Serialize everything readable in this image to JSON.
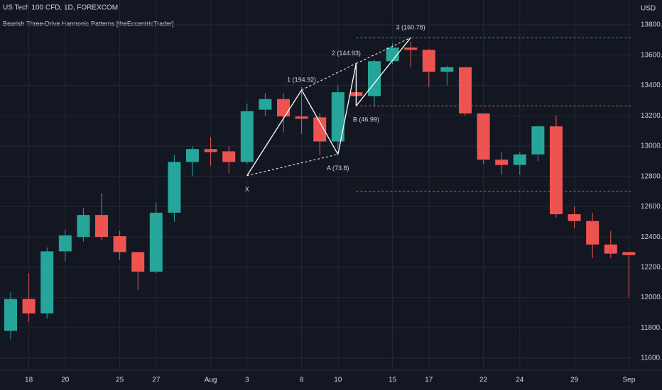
{
  "chart_data": {
    "type": "candlestick",
    "title": "US Tech 100 CFD, 1D, FOREXCOM",
    "subtitle": "Bearish Three-Drive Harmonic Patterns [theEccentricTrader]",
    "y_unit": "USD",
    "categories": [
      null,
      "18",
      null,
      "20",
      null,
      null,
      "25",
      null,
      "27",
      null,
      null,
      "Aug",
      null,
      "3",
      null,
      null,
      "8",
      null,
      "10",
      null,
      null,
      "15",
      null,
      "17",
      null,
      null,
      "22",
      null,
      "24",
      null,
      null,
      "29",
      null,
      null,
      "Sep"
    ],
    "open": [
      11780,
      11990,
      11895,
      12305,
      12400,
      12545,
      12405,
      12300,
      12170,
      12560,
      12895,
      12980,
      12965,
      12895,
      13240,
      13310,
      13195,
      13190,
      13030,
      13355,
      13330,
      13560,
      13650,
      13635,
      13490,
      13520,
      13215,
      12910,
      12875,
      12945,
      13130,
      12550,
      12505,
      12350,
      12300
    ],
    "high": [
      12035,
      12160,
      12330,
      12450,
      12590,
      12690,
      12440,
      12300,
      12630,
      12940,
      13000,
      13060,
      13000,
      13280,
      13350,
      13350,
      13390,
      13220,
      13400,
      13550,
      13570,
      13680,
      13690,
      13640,
      13530,
      13520,
      13215,
      12960,
      12960,
      13135,
      13200,
      12600,
      12560,
      12440,
      12300
    ],
    "low": [
      11725,
      11840,
      11860,
      12240,
      12370,
      12380,
      12250,
      12050,
      12160,
      12500,
      12800,
      12870,
      12820,
      12880,
      13200,
      13090,
      13080,
      12940,
      12980,
      13270,
      13260,
      13540,
      13520,
      13390,
      13400,
      13200,
      12880,
      12810,
      12810,
      12900,
      12530,
      12460,
      12260,
      12260,
      12000
    ],
    "close": [
      11990,
      11895,
      12305,
      12410,
      12545,
      12400,
      12300,
      12170,
      12560,
      12895,
      12980,
      12960,
      12895,
      13230,
      13310,
      13195,
      13180,
      13030,
      13355,
      13330,
      13560,
      13650,
      13635,
      13490,
      13520,
      13215,
      12910,
      12875,
      12945,
      13130,
      12550,
      12505,
      12350,
      12290,
      12280
    ],
    "up_color": "#26a69a",
    "down_color": "#ef5350",
    "ylim": [
      11530,
      13964
    ],
    "yticks": [
      {
        "value": 11600,
        "label": "11600.0"
      },
      {
        "value": 11800,
        "label": "11800.0"
      },
      {
        "value": 12000,
        "label": "12000.0"
      },
      {
        "value": 12200,
        "label": "12200.0"
      },
      {
        "value": 12400,
        "label": "12400.0"
      },
      {
        "value": 12600,
        "label": "12600.0"
      },
      {
        "value": 12800,
        "label": "12800.0"
      },
      {
        "value": 13000,
        "label": "13000.0"
      },
      {
        "value": 13200,
        "label": "13200.0"
      },
      {
        "value": 13400,
        "label": "13400.0"
      },
      {
        "value": 13600,
        "label": "13600.0"
      },
      {
        "value": 13800,
        "label": "13800.0"
      }
    ],
    "grid": true,
    "pattern": [
      {
        "label": "X",
        "at": 13,
        "value": 12805
      },
      {
        "label": "1 (194.92)",
        "at": 16,
        "value": 13370
      },
      {
        "label": "A (73.8)",
        "at": 18,
        "value": 12945
      },
      {
        "label": "2 (144.93)",
        "at": 19,
        "value": 13545
      },
      {
        "label": "B (46.99)",
        "at": 19,
        "value": 13265
      },
      {
        "label": "3 (160.78)",
        "at": 22,
        "value": 13715
      }
    ],
    "levels": [
      {
        "value": 13715,
        "color": "#26a69a",
        "from": 19
      },
      {
        "value": 13265,
        "color": "#ef5350",
        "from": 19
      },
      {
        "value": 12700,
        "color": "#ef5350",
        "from": 19
      }
    ]
  }
}
